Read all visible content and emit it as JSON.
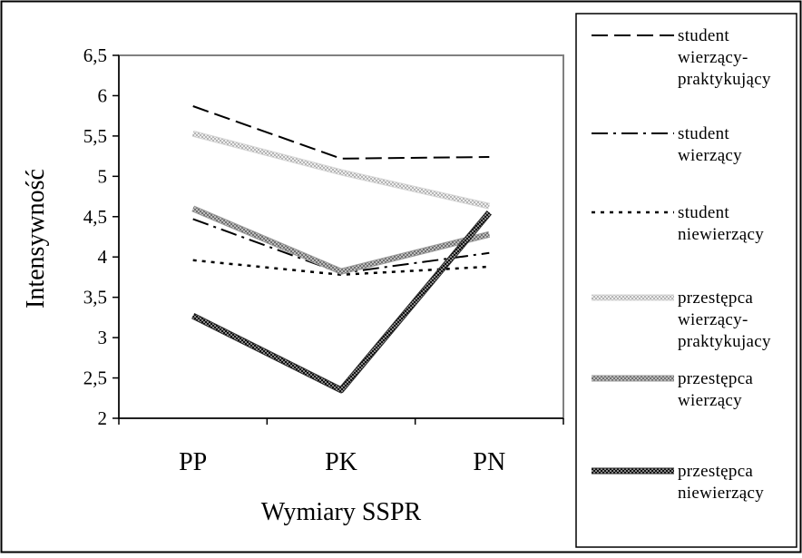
{
  "chart_data": {
    "type": "line",
    "title": "",
    "xlabel": "Wymiary SSPR",
    "ylabel": "Intensywność",
    "categories": [
      "PP",
      "PK",
      "PN"
    ],
    "ylim": [
      2,
      6.5
    ],
    "y_ticks": [
      "2",
      "2,5",
      "3",
      "3,5",
      "4",
      "4,5",
      "5",
      "5,5",
      "6",
      "6,5"
    ],
    "grid": false,
    "legend_position": "right",
    "series": [
      {
        "name": "student wierzący-praktykujący",
        "legend_lines": [
          "student",
          "wierzący-",
          "praktykujący"
        ],
        "style": "dashed",
        "values": [
          5.87,
          5.22,
          5.24
        ]
      },
      {
        "name": "student wierzący",
        "legend_lines": [
          "student",
          "wierzący"
        ],
        "style": "dash-dot",
        "values": [
          4.47,
          3.8,
          4.05
        ]
      },
      {
        "name": "student niewierzący",
        "legend_lines": [
          "student",
          "niewierzący"
        ],
        "style": "dotted",
        "values": [
          3.96,
          3.78,
          3.88
        ]
      },
      {
        "name": "przestępca wierzący-praktykujacy",
        "legend_lines": [
          "przestępca",
          "wierzący-",
          "praktykujacy"
        ],
        "style": "light-hatched",
        "values": [
          5.53,
          5.05,
          4.63
        ]
      },
      {
        "name": "przestępca wierzący",
        "legend_lines": [
          "przestępca",
          "wierzący"
        ],
        "style": "medium-hatched",
        "values": [
          4.6,
          3.82,
          4.28
        ]
      },
      {
        "name": "przestępca niewierzący",
        "legend_lines": [
          "przestępca",
          "niewierzący"
        ],
        "style": "dark-hatched",
        "values": [
          3.27,
          2.35,
          4.55
        ]
      }
    ]
  },
  "colors": {
    "line": "#000000",
    "light_hatch": "#c8c8c8",
    "medium_hatch": "#8c8c8c",
    "dark_hatch": "#1e1e1e",
    "plot_border": "#808080"
  }
}
